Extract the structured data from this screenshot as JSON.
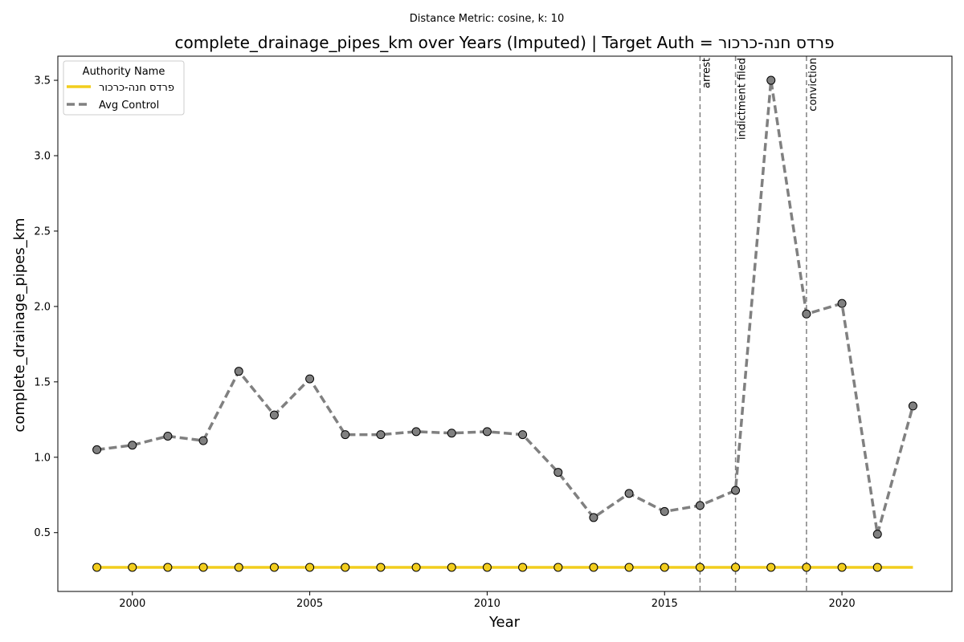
{
  "figure": {
    "suptitle": "Distance Metric: cosine, k: 10",
    "title": "complete_drainage_pipes_km over Years (Imputed) | Target Auth = פרדס חנה-כרכור"
  },
  "chart_data": {
    "type": "line",
    "xlabel": "Year",
    "ylabel": "complete_drainage_pipes_km",
    "xlim": [
      1997.9,
      2023.1
    ],
    "ylim": [
      0.11,
      3.66
    ],
    "x_ticks": [
      2000,
      2005,
      2010,
      2015,
      2020
    ],
    "y_ticks": [
      0.5,
      1.0,
      1.5,
      2.0,
      2.5,
      3.0,
      3.5
    ],
    "x": [
      1999,
      2000,
      2001,
      2002,
      2003,
      2004,
      2005,
      2006,
      2007,
      2008,
      2009,
      2010,
      2011,
      2012,
      2013,
      2014,
      2015,
      2016,
      2017,
      2018,
      2019,
      2020,
      2021,
      2022
    ],
    "series": [
      {
        "name": "פרדס חנה-כרכור",
        "color": "#f2cd1d",
        "style": "solid",
        "marker_color": "#f2cd1d",
        "marker_years": [
          1999,
          2000,
          2001,
          2002,
          2003,
          2004,
          2005,
          2006,
          2007,
          2008,
          2009,
          2010,
          2011,
          2012,
          2013,
          2014,
          2015,
          2016,
          2017,
          2018,
          2019,
          2020,
          2021
        ],
        "values": [
          0.27,
          0.27,
          0.27,
          0.27,
          0.27,
          0.27,
          0.27,
          0.27,
          0.27,
          0.27,
          0.27,
          0.27,
          0.27,
          0.27,
          0.27,
          0.27,
          0.27,
          0.27,
          0.27,
          0.27,
          0.27,
          0.27,
          0.27,
          0.27
        ]
      },
      {
        "name": "Avg Control",
        "color": "#808080",
        "style": "dashed",
        "marker_color": "#808080",
        "marker_years": [
          1999,
          2000,
          2001,
          2002,
          2003,
          2004,
          2005,
          2006,
          2007,
          2008,
          2009,
          2010,
          2011,
          2012,
          2013,
          2014,
          2015,
          2016,
          2017,
          2018,
          2019,
          2020,
          2021,
          2022
        ],
        "values": [
          1.05,
          1.08,
          1.14,
          1.11,
          1.57,
          1.28,
          1.52,
          1.15,
          1.15,
          1.17,
          1.16,
          1.17,
          1.15,
          0.9,
          0.6,
          0.76,
          0.64,
          0.68,
          0.78,
          3.5,
          1.95,
          2.02,
          0.49,
          1.34
        ]
      }
    ],
    "events": [
      {
        "x": 2016,
        "label": "arrest"
      },
      {
        "x": 2017,
        "label": "indictment filed"
      },
      {
        "x": 2019,
        "label": "conviction"
      }
    ],
    "legend": {
      "title": "Authority Name",
      "placement": "top-left"
    },
    "grid": false
  }
}
